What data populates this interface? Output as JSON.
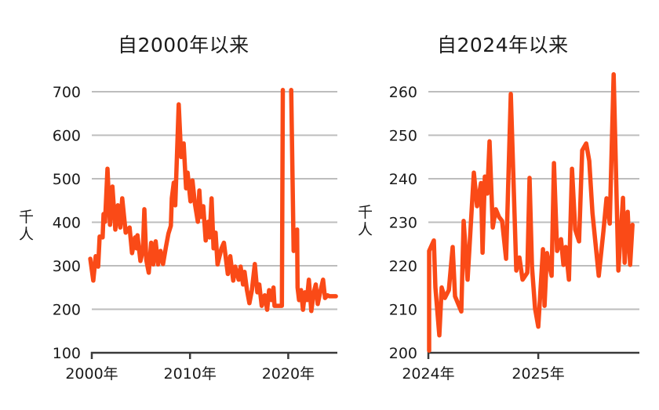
{
  "colors": {
    "series": "#fa4a17",
    "grid": "#bdbdbd",
    "axis": "#3a3a3a",
    "text": "#1a1a1a"
  },
  "chart_data": [
    {
      "id": "left",
      "type": "line",
      "title": "自2000年以来",
      "ylabel": "千人",
      "xlabel": "",
      "ylim": [
        100,
        700
      ],
      "yticks": [
        100,
        200,
        300,
        400,
        500,
        600,
        700
      ],
      "ytick_labels": [
        "100",
        "200",
        "300",
        "400",
        "500",
        "600",
        "700"
      ],
      "xlim": [
        2000,
        2025
      ],
      "xticks": [
        2000,
        2010,
        2020
      ],
      "xtick_labels": [
        "2000年",
        "2010年",
        "2020年"
      ],
      "grid": true,
      "legend": null,
      "series": [
        {
          "name": "千人",
          "x": [
            1999.85,
            2000.15,
            2000.4,
            2000.65,
            2000.8,
            2001.1,
            2001.2,
            2001.35,
            2001.6,
            2001.85,
            2002.1,
            2002.4,
            2002.65,
            2002.9,
            2003.1,
            2003.45,
            2003.85,
            2004.1,
            2004.4,
            2004.55,
            2004.65,
            2004.95,
            2005.2,
            2005.35,
            2005.55,
            2005.8,
            2006.05,
            2006.25,
            2006.5,
            2006.75,
            2007.0,
            2007.25,
            2007.55,
            2007.8,
            2008.05,
            2008.15,
            2008.35,
            2008.5,
            2008.85,
            2009.1,
            2009.35,
            2009.6,
            2009.75,
            2010.05,
            2010.25,
            2010.5,
            2010.8,
            2010.95,
            2011.1,
            2011.35,
            2011.6,
            2011.85,
            2012.0,
            2012.2,
            2012.4,
            2012.6,
            2012.8,
            2013.2,
            2013.45,
            2013.85,
            2014.1,
            2014.4,
            2014.6,
            2014.95,
            2015.15,
            2015.4,
            2015.55,
            2015.8,
            2016.05,
            2016.3,
            2016.6,
            2016.85,
            2017.05,
            2017.3,
            2017.6,
            2017.85,
            2018.05,
            2018.3,
            2018.5,
            2018.6,
            2019.35,
            2019.45,
            null,
            2020.3,
            2020.55,
            2020.9,
            2020.95,
            2021.1,
            2021.3,
            2021.5,
            2021.7,
            2021.9,
            2022.1,
            2022.35,
            2022.6,
            2022.8,
            2023.0,
            2023.3,
            2023.55,
            2023.75,
            2024.0,
            2024.2,
            2024.4,
            2024.6,
            2024.85
          ],
          "values": [
            316,
            266,
            322,
            298,
            367,
            365,
            419,
            401,
            523,
            394,
            482,
            383,
            439,
            388,
            455,
            376,
            388,
            329,
            365,
            340,
            370,
            311,
            334,
            430,
            313,
            284,
            353,
            303,
            356,
            303,
            334,
            304,
            343,
            374,
            392,
            455,
            491,
            439,
            671,
            550,
            581,
            478,
            514,
            448,
            496,
            442,
            401,
            473,
            412,
            437,
            358,
            401,
            365,
            455,
            340,
            376,
            303,
            340,
            353,
            281,
            322,
            266,
            298,
            268,
            298,
            257,
            286,
            244,
            214,
            244,
            304,
            239,
            257,
            208,
            232,
            199,
            244,
            221,
            250,
            208,
            208,
            704,
            null,
            704,
            334,
            383,
            250,
            221,
            244,
            199,
            239,
            221,
            268,
            196,
            239,
            257,
            212,
            244,
            268,
            226,
            232,
            230,
            230,
            230,
            230
          ]
        }
      ]
    },
    {
      "id": "right",
      "type": "line",
      "title": "自2024年以来",
      "ylabel": "千人",
      "xlabel": "",
      "ylim": [
        200,
        260
      ],
      "yticks": [
        200,
        210,
        220,
        230,
        240,
        250,
        260
      ],
      "ytick_labels": [
        "200",
        "210",
        "220",
        "230",
        "240",
        "250",
        "260"
      ],
      "xlim": [
        2024,
        2025.92
      ],
      "xticks": [
        2024,
        2025
      ],
      "xtick_labels": [
        "2024年",
        "2025年"
      ],
      "grid": true,
      "legend": null,
      "series": [
        {
          "name": "千人",
          "x": [
            2024.007,
            2024.007,
            2024.05,
            2024.064,
            2024.1,
            2024.121,
            2024.15,
            2024.186,
            2024.221,
            2024.243,
            2024.3,
            2024.321,
            2024.357,
            2024.414,
            2024.443,
            2024.479,
            2024.493,
            2024.514,
            2024.536,
            2024.557,
            2024.586,
            2024.614,
            2024.643,
            2024.671,
            2024.707,
            2024.75,
            2024.8,
            2024.829,
            2024.857,
            2024.9,
            2024.921,
            2024.943,
            2024.971,
            2025.0,
            2025.043,
            2025.057,
            2025.079,
            2025.121,
            2025.143,
            2025.171,
            2025.207,
            2025.229,
            2025.25,
            2025.279,
            2025.307,
            2025.336,
            2025.371,
            2025.4,
            2025.436,
            2025.464,
            2025.493,
            2025.55,
            2025.593,
            2025.621,
            2025.65,
            2025.686,
            2025.729,
            2025.771,
            2025.786,
            2025.814,
            2025.836,
            2025.857
          ],
          "values": [
            200.5,
            223.4,
            225.8,
            215,
            204,
            215,
            212.6,
            214.4,
            224.3,
            213,
            209.5,
            230.3,
            216.8,
            241.4,
            233.7,
            239,
            223,
            240.5,
            236.6,
            248.6,
            228.8,
            233,
            231.2,
            230.3,
            221.6,
            259.5,
            218.9,
            221.9,
            216.8,
            218.4,
            240.2,
            219.8,
            210.2,
            206,
            223.8,
            210.8,
            222.9,
            217.7,
            243.6,
            223.4,
            226.1,
            220.2,
            224.3,
            216.8,
            242.3,
            228.3,
            225.6,
            246.5,
            248.1,
            244.1,
            232.1,
            217.7,
            228,
            235.5,
            229.7,
            264,
            218.9,
            235.6,
            220.7,
            232.4,
            220.2,
            229.4
          ]
        }
      ]
    }
  ]
}
